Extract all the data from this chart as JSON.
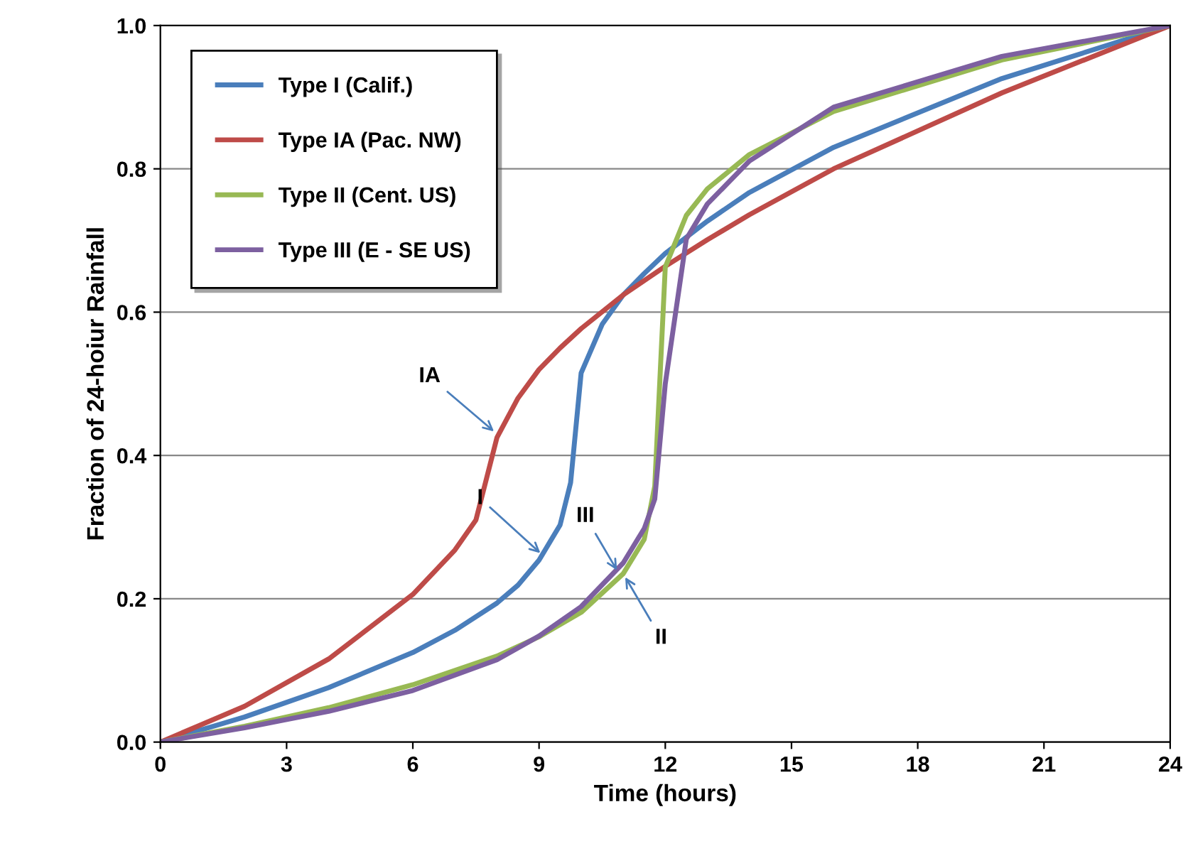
{
  "chart_data": {
    "type": "line",
    "xlabel": "Time (hours)",
    "ylabel": "Fraction of 24-hoiur Rainfall",
    "xlim": [
      0,
      24
    ],
    "xticks": [
      0,
      3,
      6,
      9,
      12,
      15,
      18,
      21,
      24
    ],
    "ylim": [
      0,
      1.0
    ],
    "yticks": [
      {
        "value": 0,
        "label": "0.0"
      },
      0.2,
      0.4,
      0.6,
      0.8,
      {
        "value": 1.0,
        "label": "1.0"
      }
    ],
    "grid": "y",
    "legend": "top left",
    "marker": "none",
    "line_style": "solid",
    "series": [
      {
        "name": "Type I (Calif.)",
        "color": "#4a7ebb",
        "x": [
          0,
          2,
          4,
          6,
          7,
          8,
          8.5,
          9,
          9.5,
          9.75,
          10,
          10.5,
          11,
          11.5,
          12,
          13,
          14,
          16,
          20,
          24
        ],
        "values": [
          0,
          0.035,
          0.076,
          0.125,
          0.156,
          0.194,
          0.219,
          0.254,
          0.303,
          0.362,
          0.515,
          0.583,
          0.624,
          0.654,
          0.682,
          0.727,
          0.767,
          0.83,
          0.926,
          1.0
        ]
      },
      {
        "name": "Type IA (Pac. NW)",
        "color": "#be4b48",
        "x": [
          0,
          2,
          4,
          6,
          7,
          7.5,
          8,
          8.5,
          9,
          9.5,
          10,
          11,
          12,
          13,
          14,
          16,
          20,
          24
        ],
        "values": [
          0,
          0.05,
          0.116,
          0.206,
          0.268,
          0.31,
          0.425,
          0.48,
          0.52,
          0.55,
          0.577,
          0.624,
          0.664,
          0.701,
          0.736,
          0.8,
          0.906,
          1.0
        ]
      },
      {
        "name": "Type II (Cent. US)",
        "color": "#98b954",
        "x": [
          0,
          2,
          4,
          6,
          8,
          9,
          10,
          11,
          11.5,
          11.75,
          12,
          12.5,
          13,
          14,
          16,
          20,
          24
        ],
        "values": [
          0,
          0.022,
          0.048,
          0.08,
          0.12,
          0.147,
          0.181,
          0.235,
          0.283,
          0.357,
          0.663,
          0.735,
          0.772,
          0.82,
          0.88,
          0.952,
          1.0
        ]
      },
      {
        "name": "Type III (E - SE US)",
        "color": "#7d60a0",
        "x": [
          0,
          2,
          4,
          6,
          8,
          9,
          10,
          11,
          11.5,
          11.75,
          12,
          12.5,
          13,
          14,
          16,
          20,
          24
        ],
        "values": [
          0,
          0.02,
          0.043,
          0.072,
          0.115,
          0.148,
          0.189,
          0.25,
          0.298,
          0.339,
          0.5,
          0.702,
          0.751,
          0.811,
          0.886,
          0.957,
          1.0
        ]
      }
    ],
    "annotations": [
      {
        "text": "IA",
        "x": 8,
        "y": 0.43
      },
      {
        "text": "I",
        "x": 9.1,
        "y": 0.26
      },
      {
        "text": "III",
        "x": 10.9,
        "y": 0.235
      },
      {
        "text": "II",
        "x": 11,
        "y": 0.235
      }
    ]
  }
}
